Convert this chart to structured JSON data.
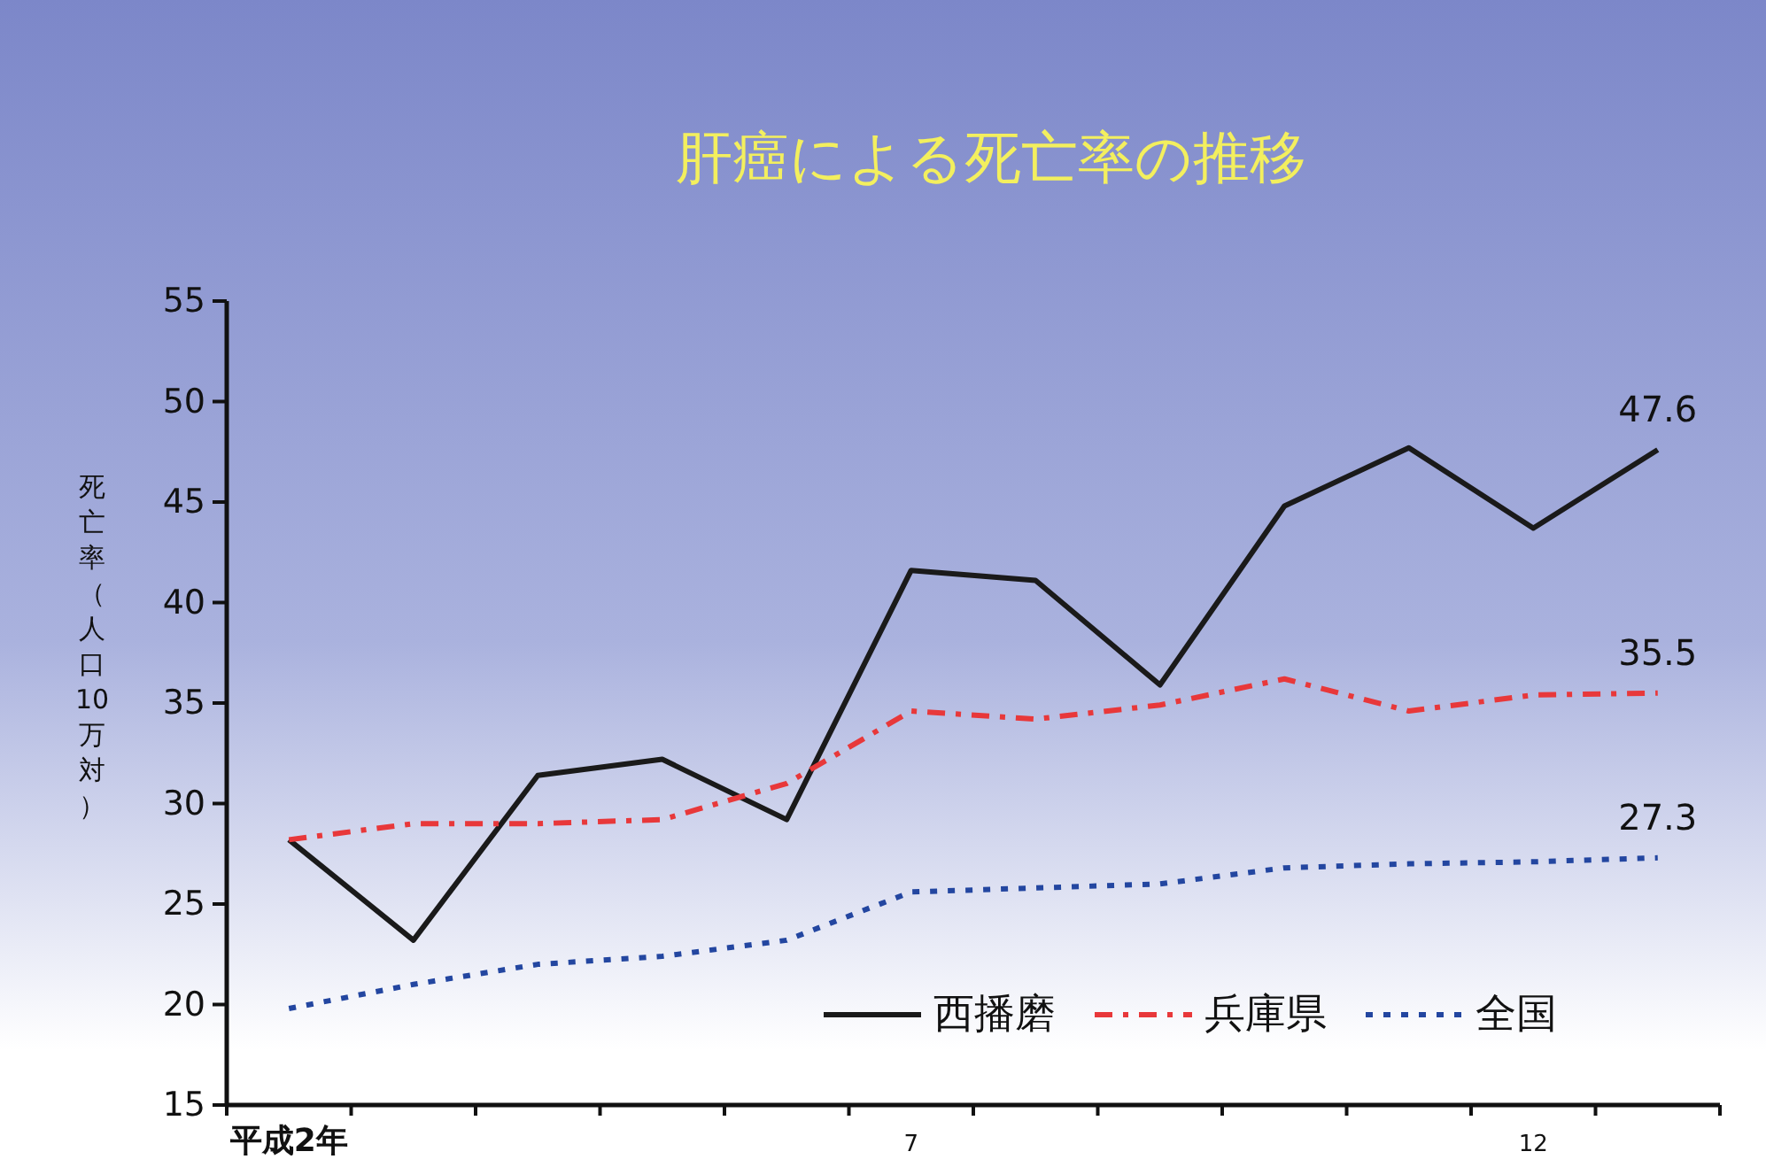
{
  "chart_data": {
    "type": "line",
    "title": "肝癌による死亡率の推移",
    "ylabel": "死亡率（人口10万対）",
    "categories": [
      "平成2年",
      null,
      null,
      null,
      null,
      "7",
      null,
      null,
      null,
      null,
      "12",
      null
    ],
    "ylim": [
      15,
      55
    ],
    "yticks": [
      15,
      20,
      25,
      30,
      35,
      40,
      45,
      50,
      55
    ],
    "grid": false,
    "legend": "bottom right",
    "marker": "none",
    "series": [
      {
        "name": "西播磨",
        "color": "#1a1a1a",
        "line_style": "solid",
        "values": [
          28.2,
          23.2,
          31.4,
          32.2,
          29.2,
          41.6,
          41.1,
          35.9,
          44.8,
          47.7,
          43.7,
          47.6
        ],
        "value_labels": [
          null,
          null,
          null,
          null,
          null,
          null,
          null,
          null,
          null,
          null,
          null,
          "47.6"
        ]
      },
      {
        "name": "兵庫県",
        "color": "#e8383a",
        "line_style": "dashed",
        "values": [
          28.2,
          29.0,
          29.0,
          29.2,
          31.0,
          34.6,
          34.2,
          34.9,
          36.2,
          34.6,
          35.4,
          35.5
        ],
        "value_labels": [
          null,
          null,
          null,
          null,
          null,
          null,
          null,
          null,
          null,
          null,
          null,
          "35.5"
        ]
      },
      {
        "name": "全国",
        "color": "#2346a0",
        "line_style": "dotted",
        "values": [
          19.8,
          21.0,
          22.0,
          22.4,
          23.2,
          25.6,
          25.8,
          26.0,
          26.8,
          27.0,
          27.1,
          27.3
        ],
        "value_labels": [
          null,
          null,
          null,
          null,
          null,
          null,
          null,
          null,
          null,
          null,
          null,
          "27.3"
        ]
      }
    ]
  }
}
